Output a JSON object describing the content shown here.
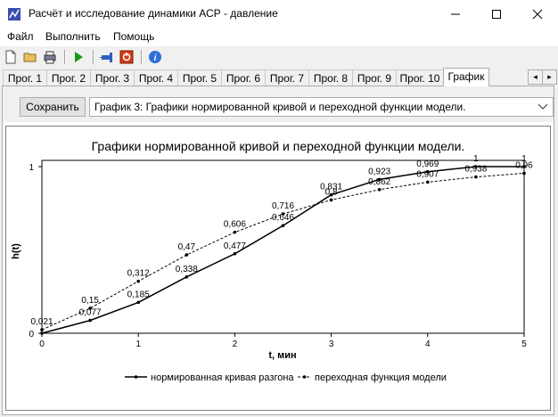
{
  "window": {
    "title": "Расчёт и исследование динамики АСР - давление",
    "minimize_glyph": "—",
    "maximize_glyph": "☐",
    "close_glyph": "✕"
  },
  "menu": {
    "items": [
      "Файл",
      "Выполнить",
      "Помощь"
    ]
  },
  "toolbar": {
    "icons": [
      "new-file-icon",
      "open-folder-icon",
      "print-icon",
      "run-icon",
      "pin-icon",
      "stop-icon",
      "info-icon"
    ]
  },
  "tabs": {
    "items": [
      "Прог. 1",
      "Прог. 2",
      "Прог. 3",
      "Прог. 4",
      "Прог. 5",
      "Прог. 6",
      "Прог. 7",
      "Прог. 8",
      "Прог. 9",
      "Прог. 10",
      "График"
    ],
    "active_index": 10,
    "scroll_left_glyph": "◂",
    "scroll_right_glyph": "▸"
  },
  "controls": {
    "save_label": "Сохранить",
    "graph_select_value": "График 3: Графики нормированной кривой и переходной функции модели."
  },
  "chart_data": {
    "type": "line",
    "title": "Графики нормированной кривой и переходной функции модели.",
    "xlabel": "t, мин",
    "ylabel": "h(t)",
    "xlim": [
      0,
      5
    ],
    "ylim": [
      0,
      1
    ],
    "x_ticks": [
      "0",
      "1",
      "2",
      "3",
      "4",
      "5"
    ],
    "y_ticks": [
      "0",
      "1"
    ],
    "grid": false,
    "legend_position": "bottom",
    "series": [
      {
        "name": "нормированная кривая разгона",
        "style": "solid",
        "color": "#000000",
        "x": [
          0,
          0.5,
          1,
          1.5,
          2,
          2.5,
          3,
          3.5,
          4,
          4.5,
          5
        ],
        "y": [
          0,
          0.077,
          0.185,
          0.338,
          0.477,
          0.646,
          0.831,
          0.923,
          0.969,
          1,
          1
        ],
        "labels": [
          "",
          "0,077",
          "0,185",
          "0,338",
          "0,477",
          "0,646",
          "0,831",
          "0,923",
          "0,969",
          "1",
          "1"
        ]
      },
      {
        "name": "переходная функция модели",
        "style": "dashed",
        "color": "#000000",
        "x": [
          0,
          0.5,
          1,
          1.5,
          2,
          2.5,
          3,
          3.5,
          4,
          4.5,
          5
        ],
        "y": [
          0.021,
          0.15,
          0.312,
          0.47,
          0.606,
          0.716,
          0.8,
          0.862,
          0.907,
          0.938,
          0.96
        ],
        "labels": [
          "0,021",
          "0,15",
          "0,312",
          "0,47",
          "0,606",
          "0,716",
          "0,8",
          "0,862",
          "0,907",
          "0,938",
          "0,96"
        ]
      }
    ]
  }
}
